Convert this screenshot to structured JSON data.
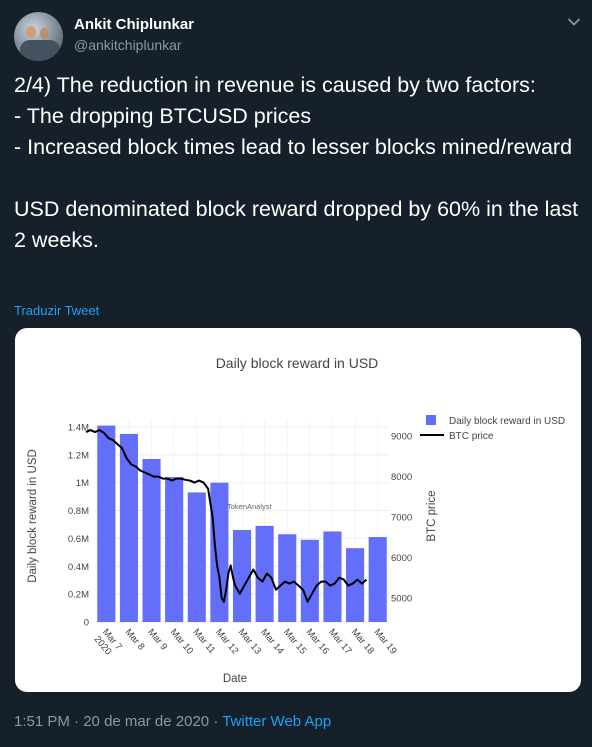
{
  "author": {
    "name": "Ankit Chiplunkar",
    "handle": "@ankitchiplunkar"
  },
  "tweet": {
    "text": "2/4) The reduction in revenue is caused by two factors:\n- The dropping BTCUSD prices\n- Increased block times lead to lesser blocks mined/reward\n\nUSD denominated block reward dropped by 60% in the last 2 weeks.",
    "translate_label": "Traduzir Tweet"
  },
  "meta": {
    "time": "1:51 PM",
    "separator1": " · ",
    "date": "20 de mar de 2020",
    "separator2": " · ",
    "app": "Twitter Web App"
  },
  "icons": {
    "more": "chevron-down-icon",
    "avatar": "profile-photo"
  },
  "colors": {
    "background": "#15202b",
    "accent": "#1da1f2",
    "bar": "#636efa",
    "line": "#000000",
    "muted": "#8899a6"
  },
  "chart_data": {
    "type": "bar",
    "title": "Daily block reward in USD",
    "xlabel": "Date",
    "ylabel": "Daily block reward in USD",
    "y2label": "BTC price",
    "watermark": "TokenAnalyst",
    "categories": [
      "Mar 7\n2020",
      "Mar 8",
      "Mar 9",
      "Mar 10",
      "Mar 11",
      "Mar 12",
      "Mar 13",
      "Mar 14",
      "Mar 15",
      "Mar 16",
      "Mar 17",
      "Mar 18",
      "Mar 19"
    ],
    "ylim": [
      0,
      1450000
    ],
    "yticks": [
      0,
      200000,
      400000,
      600000,
      800000,
      1000000,
      1200000,
      1400000
    ],
    "yticklabels": [
      "0",
      "0.2M",
      "0.4M",
      "0.6M",
      "0.8M",
      "1M",
      "1.2M",
      "1.4M"
    ],
    "y2lim": [
      4400,
      9400
    ],
    "y2ticks": [
      5000,
      6000,
      7000,
      8000,
      9000
    ],
    "y2ticklabels": [
      "5000",
      "6000",
      "7000",
      "8000",
      "9000"
    ],
    "legend_position": "top-right",
    "grid": true,
    "series": [
      {
        "name": "Daily block reward in USD",
        "type": "bar",
        "values": [
          1410000,
          1350000,
          1170000,
          1040000,
          930000,
          1000000,
          660000,
          690000,
          630000,
          590000,
          650000,
          530000,
          610000
        ]
      },
      {
        "name": "BTC price",
        "type": "line",
        "x": [
          6.6,
          6.8,
          7.0,
          7.2,
          7.4,
          7.6,
          7.8,
          8.0,
          8.2,
          8.4,
          8.6,
          8.8,
          9.0,
          9.2,
          9.4,
          9.6,
          9.8,
          10.0,
          10.2,
          10.4,
          10.6,
          10.8,
          11.0,
          11.2,
          11.4,
          11.6,
          11.8,
          12.0,
          12.1,
          12.2,
          12.3,
          12.4,
          12.5,
          12.6,
          12.7,
          12.8,
          12.9,
          13.0,
          13.1,
          13.2,
          13.4,
          13.6,
          13.8,
          14.0,
          14.2,
          14.4,
          14.6,
          14.8,
          15.0,
          15.2,
          15.4,
          15.6,
          15.8,
          16.0,
          16.2,
          16.4,
          16.6,
          16.8,
          17.0,
          17.2,
          17.4,
          17.6,
          17.8,
          18.0,
          18.2,
          18.4,
          18.6,
          18.8,
          19.0
        ],
        "values": [
          9100,
          9150,
          9100,
          9150,
          9080,
          8950,
          8900,
          8800,
          8700,
          8450,
          8300,
          8250,
          8150,
          8100,
          8050,
          8000,
          8000,
          7950,
          7950,
          7900,
          7950,
          7950,
          7920,
          7900,
          7850,
          7900,
          7850,
          7700,
          7350,
          7000,
          6300,
          5800,
          5500,
          5000,
          4900,
          5200,
          5600,
          5800,
          5500,
          5300,
          5100,
          5300,
          5500,
          5700,
          5500,
          5400,
          5600,
          5500,
          5200,
          5300,
          5400,
          5350,
          5400,
          5300,
          5200,
          4900,
          5100,
          5300,
          5400,
          5400,
          5300,
          5350,
          5500,
          5450,
          5300,
          5350,
          5450,
          5350,
          5450
        ]
      }
    ]
  }
}
